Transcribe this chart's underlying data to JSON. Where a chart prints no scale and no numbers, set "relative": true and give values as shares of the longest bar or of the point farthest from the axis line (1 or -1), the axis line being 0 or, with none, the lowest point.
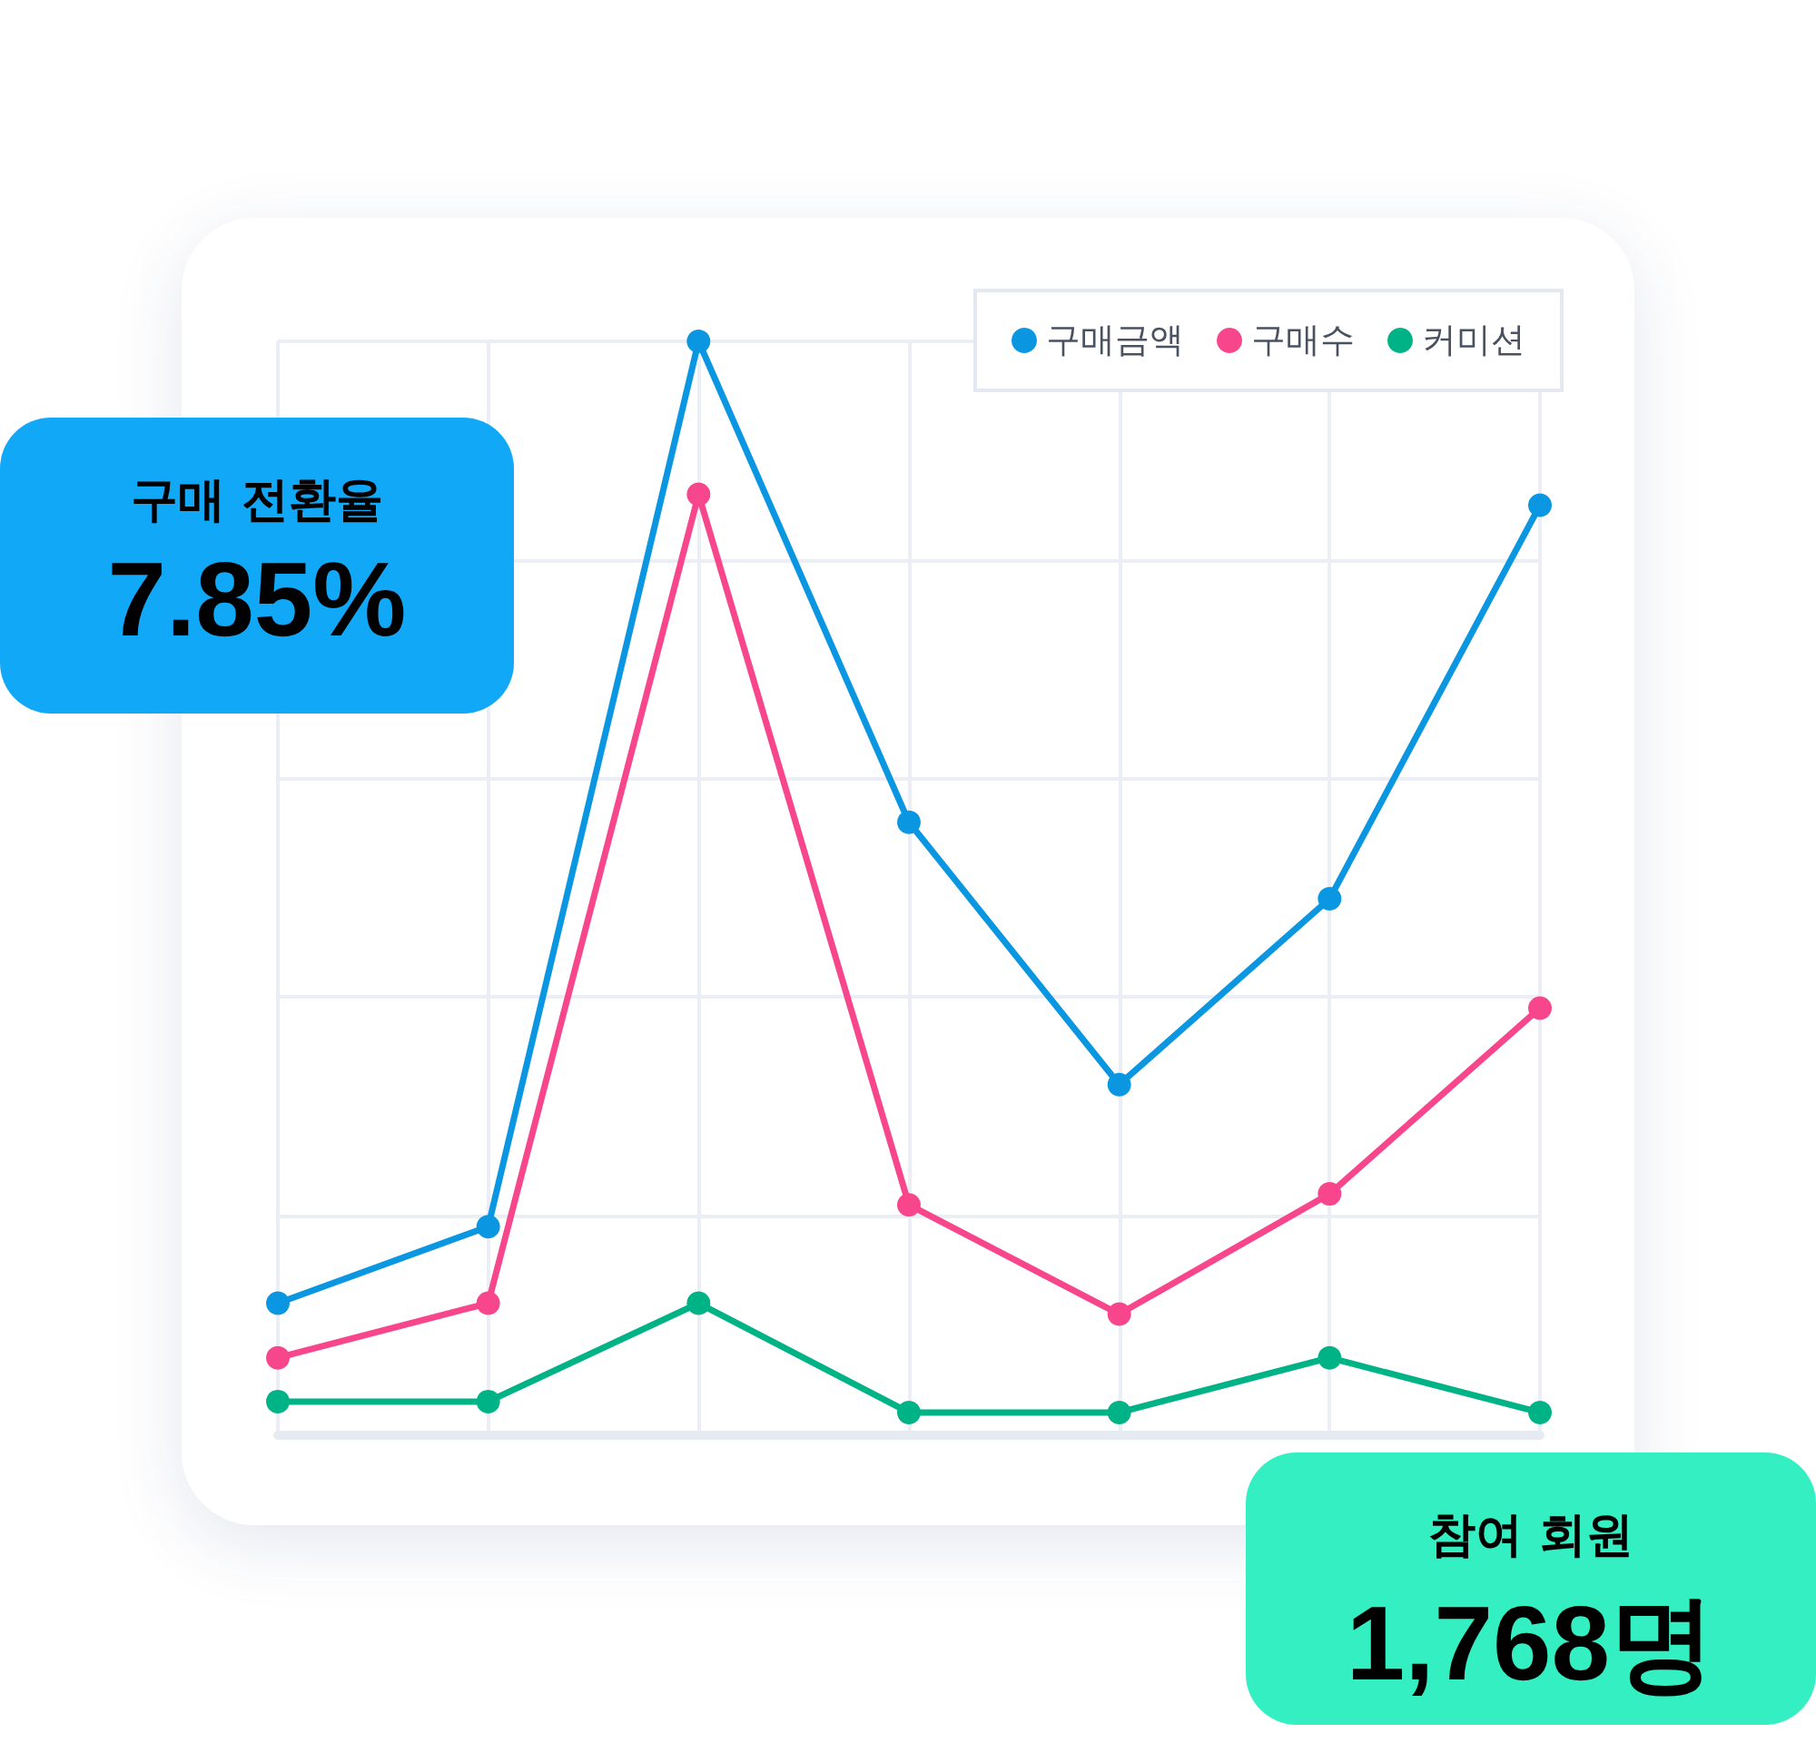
{
  "chart_data": {
    "type": "line",
    "relative": true,
    "categories": [
      null,
      null,
      null,
      null,
      null,
      null,
      null
    ],
    "series": [
      {
        "name": "구매금액",
        "color": "#0a96e0",
        "values": [
          0.12,
          0.19,
          1,
          0.56,
          0.32,
          0.49,
          0.85
        ]
      },
      {
        "name": "구매수",
        "color": "#f7468c",
        "values": [
          0.07,
          0.12,
          0.86,
          0.21,
          0.11,
          0.22,
          0.39
        ]
      },
      {
        "name": "커미션",
        "color": "#00b386",
        "values": [
          0.03,
          0.03,
          0.12,
          0.02,
          0.02,
          0.07,
          0.02
        ]
      }
    ],
    "annotations": [
      "구매 전환율",
      "7.85%",
      "참여 회원",
      "1,768명"
    ],
    "grid": true,
    "legend": "top right",
    "marker": "circle",
    "line_style": "solid"
  }
}
